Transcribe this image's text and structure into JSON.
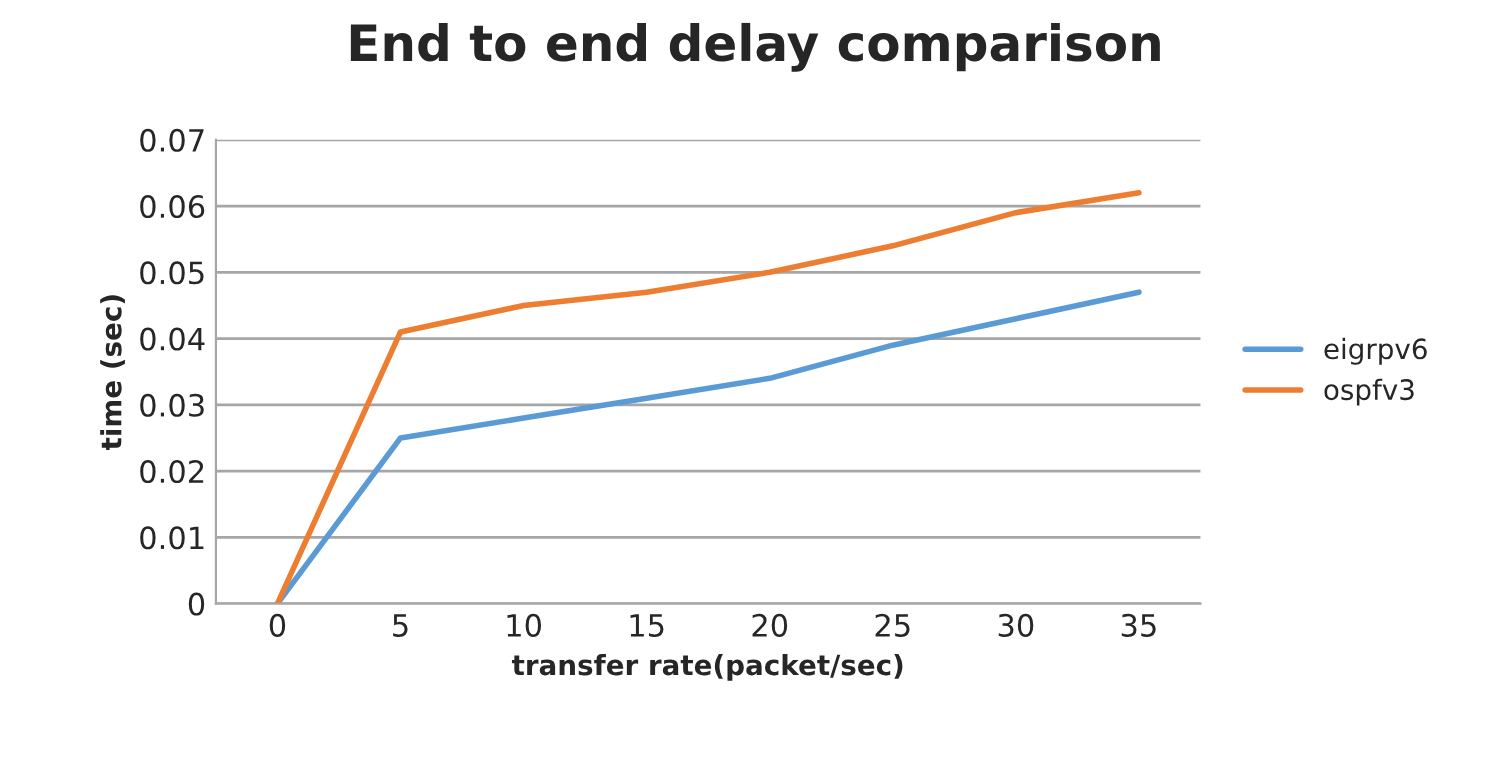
{
  "chart_data": {
    "type": "line",
    "title": "End to end delay comparison",
    "xlabel": "transfer rate(packet/sec)",
    "ylabel": "time (sec)",
    "categories": [
      "0",
      "5",
      "10",
      "15",
      "20",
      "25",
      "30",
      "35"
    ],
    "series": [
      {
        "name": "eigrpv6",
        "color": "#5b9bd5",
        "values": [
          0,
          0.025,
          0.028,
          0.031,
          0.034,
          0.039,
          0.043,
          0.047
        ]
      },
      {
        "name": "ospfv3",
        "color": "#ed7d31",
        "values": [
          0,
          0.041,
          0.045,
          0.047,
          0.05,
          0.054,
          0.059,
          0.062
        ]
      }
    ],
    "ylim": [
      0,
      0.07
    ],
    "yticks": [
      {
        "value": 0,
        "label": "0"
      },
      0.01,
      0.02,
      0.03,
      0.04,
      0.05,
      0.06,
      0.07
    ],
    "grid": "y",
    "legend": "right",
    "marker": "none",
    "line_style": "solid"
  }
}
